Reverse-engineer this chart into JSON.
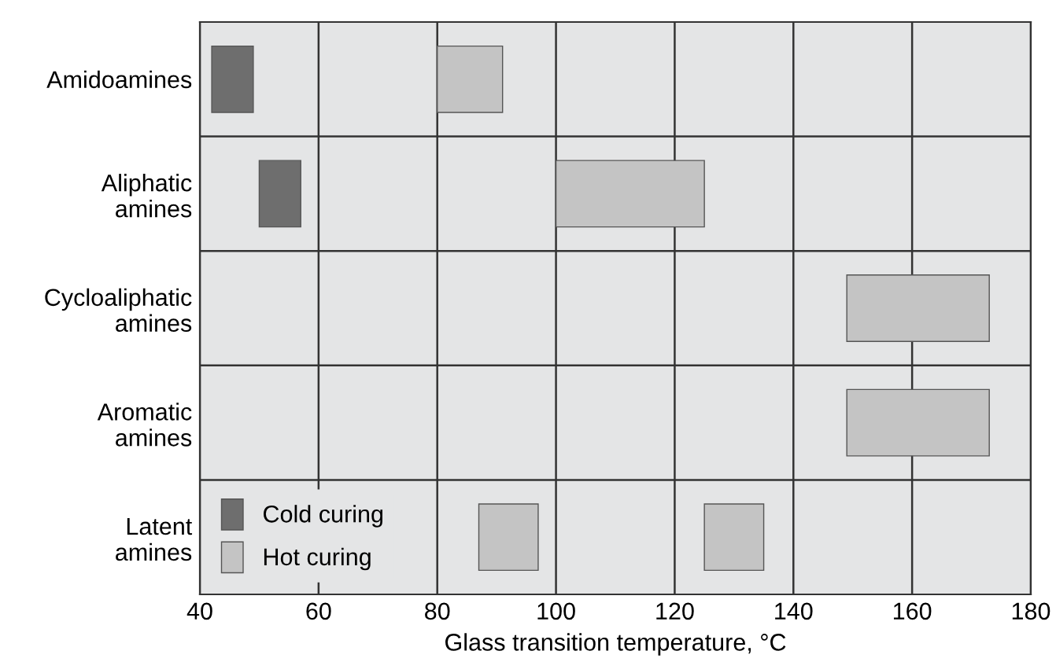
{
  "chart_data": {
    "type": "bar",
    "orientation": "horizontal",
    "xlabel": "Glass transition temperature, °C",
    "categories": [
      "Amidoamines",
      "Aliphatic\namines",
      "Cycloaliphatic\namines",
      "Aromatic\namines",
      "Latent\namines"
    ],
    "series": [
      {
        "name": "Cold curing",
        "color": "#6e6e6e",
        "base": [
          42,
          50,
          null,
          null,
          null
        ],
        "values": [
          7,
          7,
          null,
          null,
          null
        ]
      },
      {
        "name": "Hot curing",
        "color": "#c4c4c4",
        "base": [
          80,
          100,
          149,
          149,
          87
        ],
        "values": [
          11,
          25,
          24,
          24,
          10
        ]
      },
      {
        "color": "#c4c4c4",
        "base": [
          null,
          null,
          null,
          null,
          125
        ],
        "values": [
          null,
          null,
          null,
          null,
          10
        ]
      }
    ],
    "xlim": [
      40,
      180
    ],
    "xticks": [
      40,
      60,
      80,
      100,
      120,
      140,
      160,
      180
    ],
    "grid": true,
    "legend": "bottom left"
  }
}
